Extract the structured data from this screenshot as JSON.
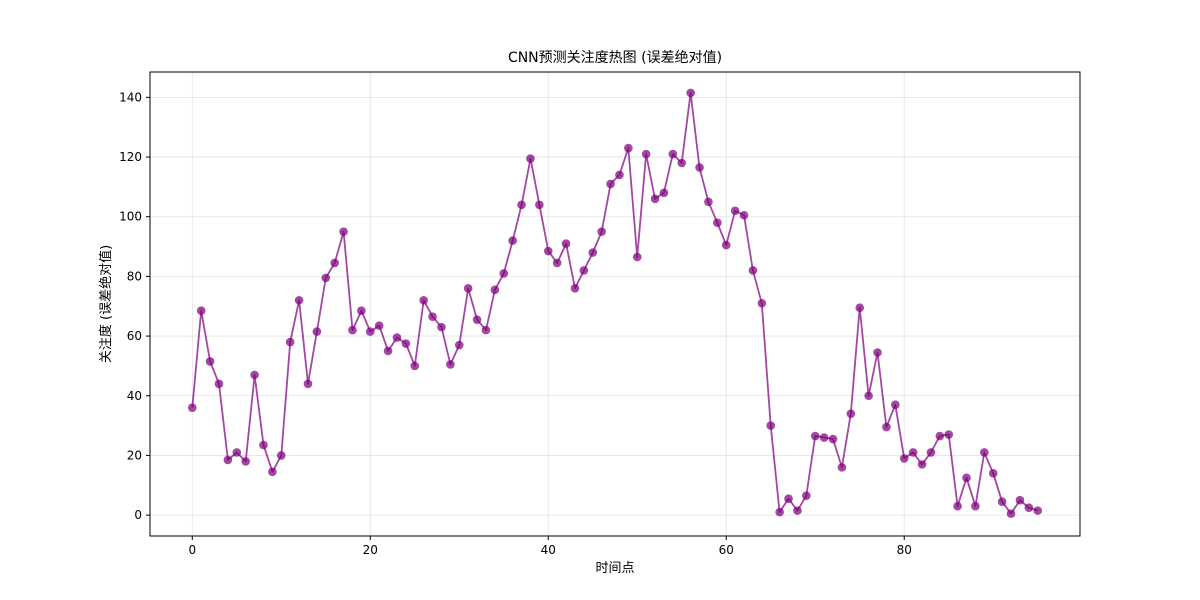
{
  "chart_data": {
    "type": "line",
    "title": "CNN预测关注度热图 (误差绝对值)",
    "xlabel": "时间点",
    "ylabel": "关注度 (误差绝对值)",
    "xlim": [
      -4.75,
      99.75
    ],
    "ylim": [
      -7,
      148.5
    ],
    "xticks": [
      0,
      20,
      40,
      60,
      80
    ],
    "yticks": [
      0,
      20,
      40,
      60,
      80,
      100,
      120,
      140
    ],
    "grid": true,
    "series_color": "#800080",
    "x": [
      0,
      1,
      2,
      3,
      4,
      5,
      6,
      7,
      8,
      9,
      10,
      11,
      12,
      13,
      14,
      15,
      16,
      17,
      18,
      19,
      20,
      21,
      22,
      23,
      24,
      25,
      26,
      27,
      28,
      29,
      30,
      31,
      32,
      33,
      34,
      35,
      36,
      37,
      38,
      39,
      40,
      41,
      42,
      43,
      44,
      45,
      46,
      47,
      48,
      49,
      50,
      51,
      52,
      53,
      54,
      55,
      56,
      57,
      58,
      59,
      60,
      61,
      62,
      63,
      64,
      65,
      66,
      67,
      68,
      69,
      70,
      71,
      72,
      73,
      74,
      75,
      76,
      77,
      78,
      79,
      80,
      81,
      82,
      83,
      84,
      85,
      86,
      87,
      88,
      89,
      90,
      91,
      92,
      93,
      94,
      95
    ],
    "values": [
      36,
      68.5,
      51.5,
      44,
      18.5,
      21,
      18,
      47,
      23.5,
      14.5,
      20,
      58,
      72,
      44,
      61.5,
      79.5,
      84.5,
      95,
      62,
      68.5,
      61.5,
      63.5,
      55,
      59.5,
      57.5,
      50,
      72,
      66.5,
      63,
      50.5,
      57,
      76,
      65.5,
      62,
      75.5,
      81,
      92,
      104,
      119.5,
      104,
      88.5,
      84.5,
      91,
      76,
      82,
      88,
      95,
      111,
      114,
      123,
      86.5,
      121,
      106,
      108,
      121,
      118,
      141.5,
      116.5,
      105,
      98,
      90.5,
      102,
      100.5,
      82,
      71,
      30,
      1,
      5.5,
      1.5,
      6.5,
      26.5,
      26,
      25.5,
      16,
      34,
      69.5,
      40,
      54.5,
      29.5,
      37,
      19,
      21,
      17,
      21,
      26.5,
      27,
      3,
      12.5,
      3,
      21,
      14,
      4.5,
      0.5,
      5,
      2.5,
      1.5
    ]
  }
}
